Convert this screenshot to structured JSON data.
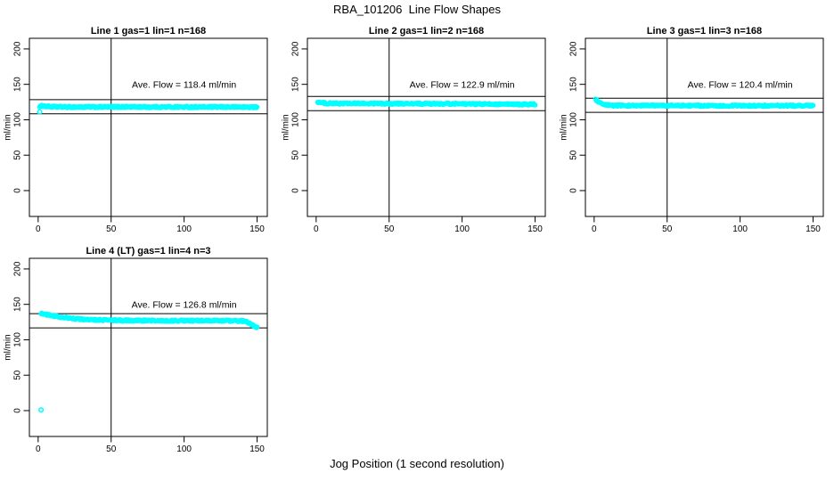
{
  "figure": {
    "title": "RBA_101206  Line Flow Shapes",
    "xlabel": "Jog Position (1 second resolution)",
    "background": "#FFFFFF",
    "point_color": "#00FFFF",
    "axis_color": "#000000"
  },
  "chart_data": [
    {
      "type": "scatter",
      "title": "Line 1 gas=1 lin=1 n=168",
      "ylabel": "ml/min",
      "ave_flow": 118.4,
      "ave_flow_label": "Ave. Flow =  118.4  ml/min",
      "xticks": [
        0,
        50,
        100,
        150
      ],
      "yticks": [
        0,
        50,
        100,
        150,
        200
      ],
      "xlim": [
        -6,
        157
      ],
      "ylim": [
        -36.5,
        215
      ],
      "vline_x": 50,
      "hlines": [
        128.4,
        108.4
      ],
      "series_points": [
        [
          1,
          119
        ],
        [
          3,
          119.5
        ],
        [
          6,
          118.8
        ],
        [
          10,
          118.3
        ],
        [
          20,
          118
        ],
        [
          40,
          118
        ],
        [
          60,
          118.2
        ],
        [
          80,
          118
        ],
        [
          100,
          118
        ],
        [
          120,
          118
        ],
        [
          140,
          118
        ],
        [
          150,
          117.8
        ]
      ],
      "outliers": [
        [
          1,
          111
        ]
      ]
    },
    {
      "type": "scatter",
      "title": "Line 2 gas=1 lin=2 n=168",
      "ylabel": "ml/min",
      "ave_flow": 122.9,
      "ave_flow_label": "Ave. Flow =  122.9  ml/min",
      "xticks": [
        0,
        50,
        100,
        150
      ],
      "yticks": [
        0,
        50,
        100,
        150,
        200
      ],
      "xlim": [
        -6,
        157
      ],
      "ylim": [
        -36.5,
        215
      ],
      "vline_x": 50,
      "hlines": [
        132.9,
        112.9
      ],
      "series_points": [
        [
          1,
          125
        ],
        [
          2,
          124.8
        ],
        [
          4,
          123.8
        ],
        [
          8,
          123.2
        ],
        [
          15,
          123
        ],
        [
          30,
          123
        ],
        [
          50,
          122.8
        ],
        [
          70,
          122.6
        ],
        [
          90,
          122.4
        ],
        [
          110,
          122.2
        ],
        [
          130,
          122
        ],
        [
          150,
          121.7
        ]
      ],
      "outliers": []
    },
    {
      "type": "scatter",
      "title": "Line 3 gas=1 lin=3 n=168",
      "ylabel": "ml/min",
      "ave_flow": 120.4,
      "ave_flow_label": "Ave. Flow =  120.4  ml/min",
      "xticks": [
        0,
        50,
        100,
        150
      ],
      "yticks": [
        0,
        50,
        100,
        150,
        200
      ],
      "xlim": [
        -6,
        157
      ],
      "ylim": [
        -36.5,
        215
      ],
      "vline_x": 50,
      "hlines": [
        130.4,
        110.4
      ],
      "series_points": [
        [
          1,
          128.5
        ],
        [
          2,
          127
        ],
        [
          3,
          125
        ],
        [
          4,
          123.5
        ],
        [
          6,
          121.5
        ],
        [
          8,
          120.7
        ],
        [
          12,
          120.2
        ],
        [
          20,
          120
        ],
        [
          40,
          120
        ],
        [
          60,
          120
        ],
        [
          80,
          119.8
        ],
        [
          100,
          119.8
        ],
        [
          120,
          119.8
        ],
        [
          140,
          119.8
        ],
        [
          150,
          119.8
        ]
      ],
      "outliers": []
    },
    {
      "type": "scatter",
      "title": "Line 4 (LT) gas=1 lin=4 n=3",
      "ylabel": "ml/min",
      "ave_flow": 126.8,
      "ave_flow_label": "Ave. Flow =  126.8  ml/min",
      "xticks": [
        0,
        50,
        100,
        150
      ],
      "yticks": [
        0,
        50,
        100,
        150,
        200
      ],
      "xlim": [
        -6,
        157
      ],
      "ylim": [
        -36.5,
        215
      ],
      "vline_x": 50,
      "hlines": [
        136.8,
        116.8
      ],
      "series_points": [
        [
          2,
          137
        ],
        [
          4,
          136.3
        ],
        [
          7,
          135
        ],
        [
          10,
          134
        ],
        [
          14,
          132.5
        ],
        [
          18,
          131.3
        ],
        [
          24,
          130
        ],
        [
          30,
          129
        ],
        [
          38,
          128.2
        ],
        [
          48,
          127.6
        ],
        [
          60,
          127.3
        ],
        [
          75,
          127.1
        ],
        [
          90,
          127
        ],
        [
          105,
          127
        ],
        [
          120,
          126.9
        ],
        [
          132,
          126.8
        ],
        [
          140,
          126.4
        ],
        [
          143,
          125
        ],
        [
          145,
          123.3
        ],
        [
          147,
          121
        ],
        [
          148,
          119
        ],
        [
          150,
          117.5
        ]
      ],
      "outliers": [
        [
          2,
          1
        ]
      ]
    }
  ]
}
